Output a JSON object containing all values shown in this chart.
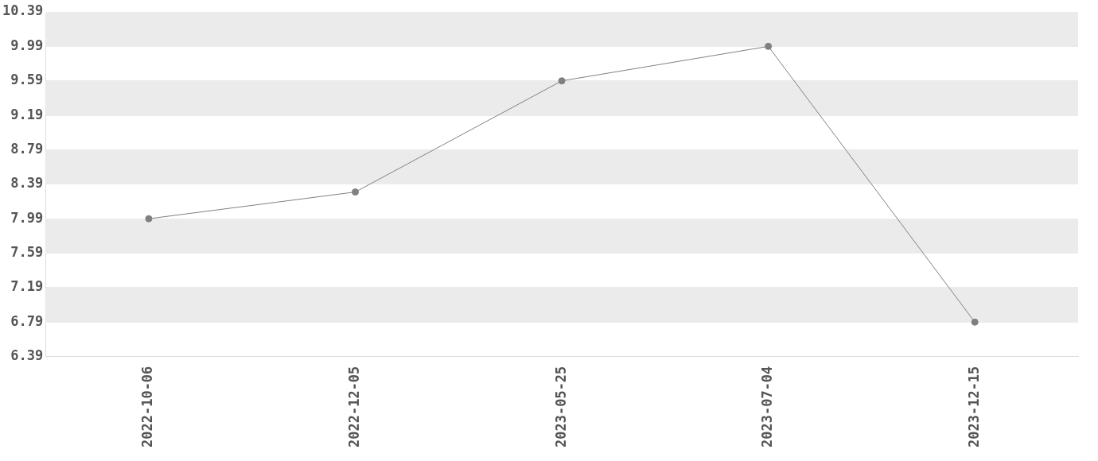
{
  "chart_data": {
    "type": "line",
    "categories": [
      "2022-10-06",
      "2022-12-05",
      "2023-05-25",
      "2023-07-04",
      "2023-12-15"
    ],
    "series": [
      {
        "color": "#808080",
        "values": [
          7.99,
          8.3,
          9.59,
          9.99,
          6.79
        ]
      }
    ],
    "ylim": [
      6.39,
      10.39
    ],
    "yticks": [
      6.39,
      6.79,
      7.19,
      7.59,
      7.99,
      8.39,
      8.79,
      9.19,
      9.59,
      9.99,
      10.39
    ],
    "grid": "y",
    "legend": false,
    "marker": "circle",
    "line_style": "solid"
  }
}
